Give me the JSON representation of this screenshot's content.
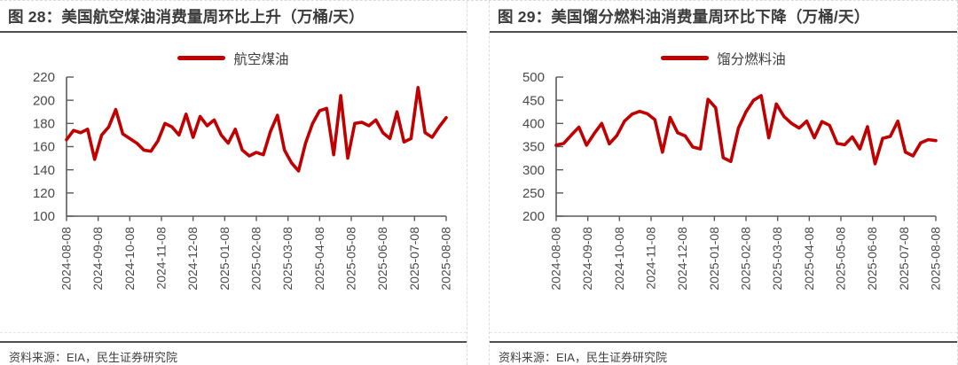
{
  "colors": {
    "accent_red": "#C00000",
    "rule_dark": "#4f4f4f",
    "dashed_border": "#dcdcdc",
    "title_text": "#3b3b3b",
    "axis_text": "#4a4a4a",
    "axis_line": "#5a5a5a",
    "source_text": "#404040"
  },
  "source": "资料来源：EIA，民生证券研究院",
  "chart_data": [
    {
      "type": "line",
      "title": "图 28：美国航空煤油消费量周环比上升（万桶/天）",
      "xlabel": "",
      "ylabel": "",
      "ylim": [
        100,
        220
      ],
      "ytick_step": 20,
      "grid": false,
      "legend_position": "top",
      "x_ticks": [
        "2024-08-08",
        "2024-09-08",
        "2024-10-08",
        "2024-11-08",
        "2024-12-08",
        "2025-01-08",
        "2025-02-08",
        "2025-03-08",
        "2025-04-08",
        "2025-05-08",
        "2025-06-08",
        "2025-07-08",
        "2025-08-08"
      ],
      "series": [
        {
          "name": "航空煤油",
          "color": "#C00000",
          "values": [
            166,
            174,
            172,
            175,
            149,
            170,
            177,
            192,
            171,
            167,
            163,
            157,
            156,
            165,
            180,
            177,
            170,
            188,
            168,
            186,
            178,
            183,
            170,
            163,
            175,
            157,
            152,
            155,
            153,
            173,
            187,
            157,
            146,
            139,
            163,
            180,
            191,
            193,
            153,
            204,
            150,
            180,
            181,
            178,
            183,
            172,
            167,
            190,
            164,
            167,
            211,
            172,
            168,
            177,
            185
          ]
        }
      ]
    },
    {
      "type": "line",
      "title": "图 29：美国馏分燃料油消费量周环比下降（万桶/天）",
      "xlabel": "",
      "ylabel": "",
      "ylim": [
        200,
        500
      ],
      "ytick_step": 50,
      "grid": false,
      "legend_position": "top",
      "x_ticks": [
        "2024-08-08",
        "2024-09-08",
        "2024-10-08",
        "2024-11-08",
        "2024-12-08",
        "2025-01-08",
        "2025-02-08",
        "2025-03-08",
        "2025-04-08",
        "2025-05-08",
        "2025-06-08",
        "2025-07-08",
        "2025-08-08"
      ],
      "series": [
        {
          "name": "馏分燃料油",
          "color": "#C00000",
          "values": [
            353,
            357,
            375,
            392,
            353,
            378,
            400,
            356,
            374,
            405,
            420,
            426,
            421,
            408,
            338,
            413,
            380,
            373,
            349,
            345,
            452,
            434,
            326,
            318,
            390,
            425,
            450,
            460,
            369,
            442,
            415,
            400,
            390,
            405,
            369,
            404,
            396,
            357,
            354,
            371,
            345,
            393,
            313,
            368,
            372,
            405,
            338,
            330,
            358,
            365,
            363
          ]
        }
      ]
    }
  ]
}
